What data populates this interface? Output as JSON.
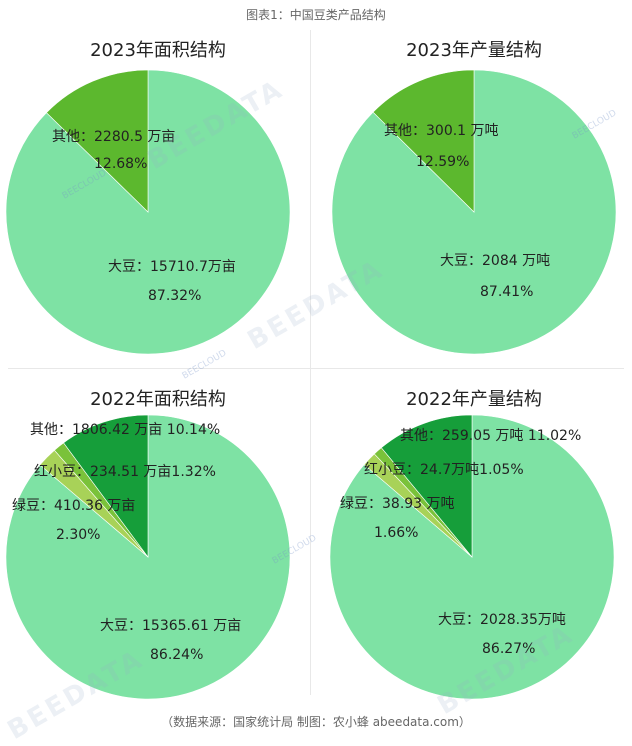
{
  "figure_title": "图表1：中国豆类产品结构",
  "source": "（数据来源：国家统计局  制图：农小蜂 abeedata.com）",
  "watermark": {
    "text": "BEEDATA",
    "brand_cn": "农小蜂智慧服务",
    "brand_en": "BEECLOUD"
  },
  "colors": {
    "soy": "#7ee2a4",
    "other": "#5cb82e",
    "other_dark": "#169e3a",
    "red_bean": "#7ac23a",
    "mung": "#a8d258"
  },
  "chart_data": [
    {
      "type": "pie",
      "title": "2023年面积结构",
      "slices": [
        {
          "name": "大豆",
          "value": 15710.7,
          "unit": "万亩",
          "percent": 87.32,
          "line1": "大豆：15710.7万亩",
          "line2": "87.32%"
        },
        {
          "name": "其他",
          "value": 2280.5,
          "unit": "万亩",
          "percent": 12.68,
          "line1": "其他：2280.5 万亩",
          "line2": "12.68%"
        }
      ]
    },
    {
      "type": "pie",
      "title": "2023年产量结构",
      "slices": [
        {
          "name": "大豆",
          "value": 2084,
          "unit": "万吨",
          "percent": 87.41,
          "line1": "大豆：2084 万吨",
          "line2": "87.41%"
        },
        {
          "name": "其他",
          "value": 300.1,
          "unit": "万吨",
          "percent": 12.59,
          "line1": "其他：300.1 万吨",
          "line2": "12.59%"
        }
      ]
    },
    {
      "type": "pie",
      "title": "2022年面积结构",
      "slices": [
        {
          "name": "大豆",
          "value": 15365.61,
          "unit": "万亩",
          "percent": 86.24,
          "line1": "大豆：15365.61 万亩",
          "line2": "86.24%"
        },
        {
          "name": "绿豆",
          "value": 410.36,
          "unit": "万亩",
          "percent": 2.3,
          "line1": "绿豆：410.36 万亩",
          "line2": "2.30%"
        },
        {
          "name": "红小豆",
          "value": 234.51,
          "unit": "万亩",
          "percent": 1.32,
          "line1": "红小豆：234.51 万亩1.32%",
          "line2": ""
        },
        {
          "name": "其他",
          "value": 1806.42,
          "unit": "万亩",
          "percent": 10.14,
          "line1": "其他：1806.42 万亩 10.14%",
          "line2": ""
        }
      ]
    },
    {
      "type": "pie",
      "title": "2022年产量结构",
      "slices": [
        {
          "name": "大豆",
          "value": 2028.35,
          "unit": "万吨",
          "percent": 86.27,
          "line1": "大豆：2028.35万吨",
          "line2": "86.27%"
        },
        {
          "name": "绿豆",
          "value": 38.93,
          "unit": "万吨",
          "percent": 1.66,
          "line1": "绿豆：38.93 万吨",
          "line2": "1.66%"
        },
        {
          "name": "红小豆",
          "value": 24.7,
          "unit": "万吨",
          "percent": 1.05,
          "line1": "红小豆：24.7万吨1.05%",
          "line2": ""
        },
        {
          "name": "其他",
          "value": 259.05,
          "unit": "万吨",
          "percent": 11.02,
          "line1": "其他：259.05 万吨 11.02%",
          "line2": ""
        }
      ]
    }
  ]
}
